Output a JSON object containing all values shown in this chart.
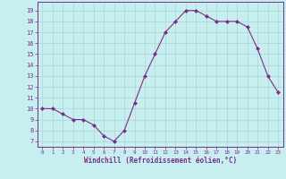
{
  "x": [
    0,
    1,
    2,
    3,
    4,
    5,
    6,
    7,
    8,
    9,
    10,
    11,
    12,
    13,
    14,
    15,
    16,
    17,
    18,
    19,
    20,
    21,
    22,
    23
  ],
  "y": [
    10.0,
    10.0,
    9.5,
    9.0,
    9.0,
    8.5,
    7.5,
    7.0,
    8.0,
    10.5,
    13.0,
    15.0,
    17.0,
    18.0,
    19.0,
    19.0,
    18.5,
    18.0,
    18.0,
    18.0,
    17.5,
    15.5,
    13.0,
    11.5
  ],
  "line_color": "#7b2d8b",
  "marker": "D",
  "marker_size": 2.0,
  "bg_color": "#c8efef",
  "grid_color": "#aad4d4",
  "xlabel": "Windchill (Refroidissement éolien,°C)",
  "ylim": [
    6.5,
    19.8
  ],
  "xlim": [
    -0.5,
    23.5
  ],
  "yticks": [
    7,
    8,
    9,
    10,
    11,
    12,
    13,
    14,
    15,
    16,
    17,
    18,
    19
  ],
  "xticks": [
    0,
    1,
    2,
    3,
    4,
    5,
    6,
    7,
    8,
    9,
    10,
    11,
    12,
    13,
    14,
    15,
    16,
    17,
    18,
    19,
    20,
    21,
    22,
    23
  ],
  "tick_color": "#7b2d8b",
  "label_color": "#7b2d8b",
  "spine_color": "#7b2d8b"
}
